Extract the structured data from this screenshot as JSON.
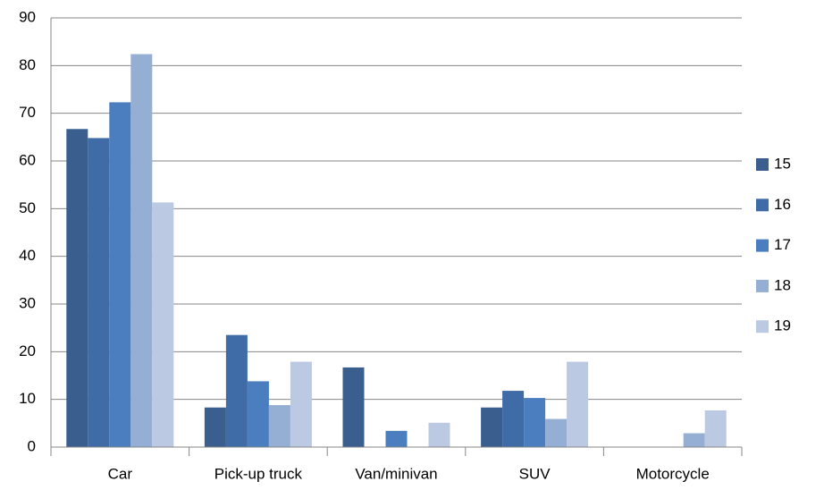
{
  "chart_data": {
    "type": "bar",
    "categories": [
      "Car",
      "Pick-up truck",
      "Van/minivan",
      "SUV",
      "Motorcycle"
    ],
    "series": [
      {
        "name": "15",
        "color": "#3a5f8f",
        "values": [
          66.7,
          8.3,
          16.7,
          8.3,
          0
        ]
      },
      {
        "name": "16",
        "color": "#3f6ca7",
        "values": [
          64.8,
          23.5,
          0,
          11.8,
          0
        ]
      },
      {
        "name": "17",
        "color": "#4a7ebf",
        "values": [
          72.3,
          13.8,
          3.4,
          10.3,
          0
        ]
      },
      {
        "name": "18",
        "color": "#95aed4",
        "values": [
          82.4,
          8.8,
          0,
          5.9,
          2.9
        ]
      },
      {
        "name": "19",
        "color": "#bcc9e3",
        "values": [
          51.3,
          17.9,
          5.1,
          17.9,
          7.7
        ]
      }
    ],
    "ylim": [
      0,
      90
    ],
    "yticks": [
      0,
      10,
      20,
      30,
      40,
      50,
      60,
      70,
      80,
      90
    ],
    "grid": true,
    "legend": "right"
  }
}
